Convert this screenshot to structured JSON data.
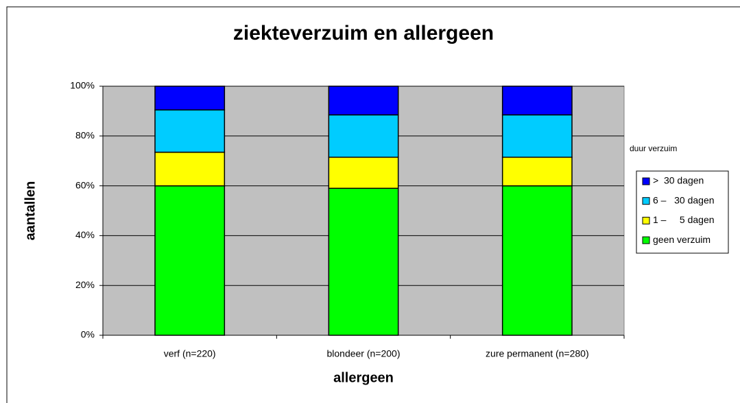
{
  "chart_data": {
    "type": "stacked_bar_percent",
    "title": "ziekteverzuim en allergeen",
    "x_label": "allergeen",
    "y_label": "aantallen",
    "legend_title": "duur verzuim",
    "categories": [
      "verf (n=220)",
      "blondeer (n=200)",
      "zure permanent (n=280)"
    ],
    "series": [
      {
        "name": "geen verzuim",
        "color": "#00ff00",
        "values": [
          60,
          59,
          60
        ]
      },
      {
        "name": "1 –     5 dagen",
        "color": "#ffff00",
        "values": [
          13.5,
          12.5,
          11.5
        ]
      },
      {
        "name": "6 –   30 dagen",
        "color": "#00ccff",
        "values": [
          17,
          17,
          17
        ]
      },
      {
        "name": ">  30 dagen",
        "color": "#0000ff",
        "values": [
          9.5,
          11.5,
          11.5
        ]
      }
    ],
    "ylim": [
      0,
      100
    ],
    "yticks": [
      {
        "value": 0,
        "label": "0%"
      },
      {
        "value": 20,
        "label": "20%"
      },
      {
        "value": 40,
        "label": "40%"
      },
      {
        "value": 60,
        "label": "60%"
      },
      {
        "value": 80,
        "label": "80%"
      },
      {
        "value": 100,
        "label": "100%"
      }
    ],
    "grid": true,
    "legend": "right"
  }
}
